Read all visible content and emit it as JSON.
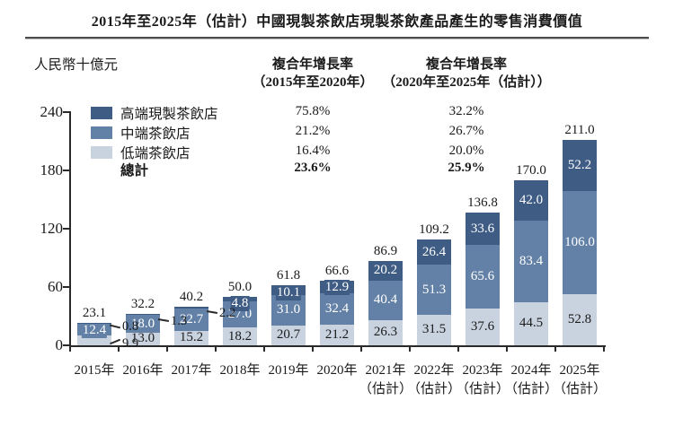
{
  "title": "2015年至2025年（估計）中國現製茶飲店現製茶飲產品產生的零售消費價值",
  "y_axis_unit": "人民幣十億元",
  "cagr_columns": [
    {
      "header_line1": "複合年增長率",
      "header_line2": "（2015年至2020年）",
      "values": [
        "75.8%",
        "21.2%",
        "16.4%",
        "23.6%"
      ],
      "bold_flags": [
        false,
        false,
        false,
        true
      ]
    },
    {
      "header_line1": "複合年增長率",
      "header_line2": "（2020年至2025年（估計））",
      "values": [
        "32.2%",
        "26.7%",
        "20.0%",
        "25.9%"
      ],
      "bold_flags": [
        false,
        false,
        false,
        true
      ]
    }
  ],
  "legend": [
    {
      "label": "高端現製茶飲店",
      "color": "#3f5c85",
      "bold": false
    },
    {
      "label": "中端茶飲店",
      "color": "#6381a6",
      "bold": false
    },
    {
      "label": "低端茶飲店",
      "color": "#c9d3df",
      "bold": false
    },
    {
      "label": "總計",
      "color": null,
      "bold": true
    }
  ],
  "chart_data": {
    "type": "bar",
    "stacked": true,
    "title": "2015年至2025年（估計）中國現製茶飲店現製茶飲產品產生的零售消費價值",
    "ylabel": "人民幣十億元",
    "ylim": [
      0,
      240
    ],
    "yticks": [
      0,
      60,
      120,
      180,
      240
    ],
    "grid": false,
    "legend_position": "top-left",
    "categories": [
      {
        "year": "2015年",
        "note": ""
      },
      {
        "year": "2016年",
        "note": ""
      },
      {
        "year": "2017年",
        "note": ""
      },
      {
        "year": "2018年",
        "note": ""
      },
      {
        "year": "2019年",
        "note": ""
      },
      {
        "year": "2020年",
        "note": ""
      },
      {
        "year": "2021年",
        "note": "（估計）"
      },
      {
        "year": "2022年",
        "note": "（估計）"
      },
      {
        "year": "2023年",
        "note": "（估計）"
      },
      {
        "year": "2024年",
        "note": "（估計）"
      },
      {
        "year": "2025年",
        "note": "（估計）"
      }
    ],
    "series": [
      {
        "name": "低端茶飲店",
        "color": "#c9d3df",
        "label_color": "#1a1a1a",
        "values": [
          9.9,
          13.0,
          15.2,
          18.2,
          20.7,
          21.2,
          26.3,
          31.5,
          37.6,
          44.5,
          52.8
        ]
      },
      {
        "name": "中端茶飲店",
        "color": "#6381a6",
        "label_color": "#ffffff",
        "values": [
          12.4,
          18.0,
          22.7,
          27.0,
          31.0,
          32.4,
          40.4,
          51.3,
          65.6,
          83.4,
          106.0
        ]
      },
      {
        "name": "高端現製茶飲店",
        "color": "#3f5c85",
        "label_color": "#ffffff",
        "values": [
          0.8,
          1.3,
          2.2,
          4.8,
          10.1,
          12.9,
          20.2,
          26.4,
          33.6,
          42.0,
          52.2
        ]
      }
    ],
    "totals": [
      23.1,
      32.2,
      40.2,
      50.0,
      61.8,
      66.6,
      86.9,
      109.2,
      136.8,
      170.0,
      211.0
    ]
  }
}
